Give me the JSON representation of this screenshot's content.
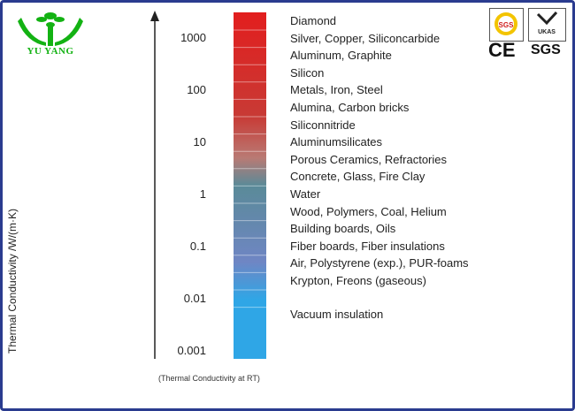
{
  "brand": {
    "name": "YU YANG"
  },
  "certifications": {
    "mark1": "CE",
    "mark2": "SGS",
    "badge1": "SGS",
    "badge2": "UKAS"
  },
  "colors": {
    "brand_green": "#13b213",
    "frame_blue": "#2a3b8f"
  },
  "chart_data": {
    "type": "scale",
    "scale": "log",
    "ylim": [
      0.001,
      2000
    ],
    "ylabel": "Thermal Conductivity  /W/(m·K)",
    "footnote": "(Thermal Conductivity at RT)",
    "ticks": [
      {
        "value": 1000,
        "label": "1000"
      },
      {
        "value": 100,
        "label": "100"
      },
      {
        "value": 10,
        "label": "10"
      },
      {
        "value": 1,
        "label": "1"
      },
      {
        "value": 0.1,
        "label": "0.1"
      },
      {
        "value": 0.01,
        "label": "0.01"
      },
      {
        "value": 0.001,
        "label": "0.001"
      }
    ],
    "materials": [
      {
        "name": "Diamond",
        "value": 2000
      },
      {
        "name": "Silver, Copper, Siliconcarbide",
        "value": 400
      },
      {
        "name": "Aluminum, Graphite",
        "value": 200
      },
      {
        "name": "Silicon",
        "value": 100
      },
      {
        "name": "Metals, Iron, Steel",
        "value": 50
      },
      {
        "name": "Alumina, Carbon bricks",
        "value": 25
      },
      {
        "name": "Siliconnitride",
        "value": 10
      },
      {
        "name": "Aluminumsilicates",
        "value": 5
      },
      {
        "name": "Porous Ceramics, Refractories",
        "value": 2.5
      },
      {
        "name": "Concrete, Glass, Fire Clay",
        "value": 1
      },
      {
        "name": "Water",
        "value": 0.5
      },
      {
        "name": "Wood, Polymers, Coal, Helium",
        "value": 0.25
      },
      {
        "name": "Building boards, Oils",
        "value": 0.1
      },
      {
        "name": "Fiber boards, Fiber insulations",
        "value": 0.05
      },
      {
        "name": "Air, Polystyrene (exp.), PUR-foams",
        "value": 0.025
      },
      {
        "name": "Krypton, Freons (gaseous)",
        "value": 0.01
      },
      {
        "name": "Vacuum insulation",
        "value": 0.001
      }
    ],
    "bar_colors": [
      "#e21e1e",
      "#c83a35",
      "#b97a74",
      "#5a8a98",
      "#6f86c4",
      "#2fa6e6"
    ]
  }
}
